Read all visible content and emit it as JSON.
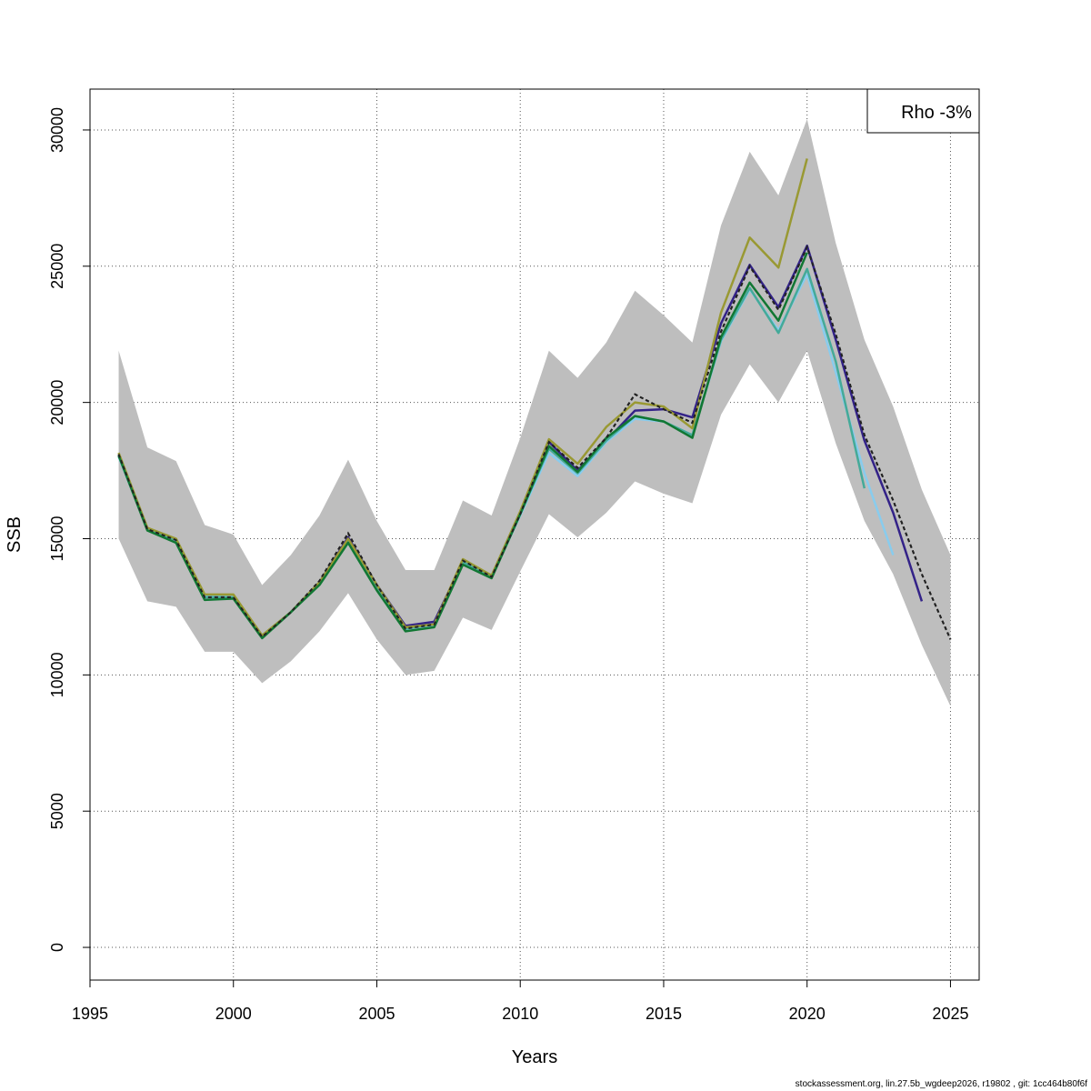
{
  "chart_data": {
    "type": "line",
    "title": "",
    "xlabel": "Years",
    "ylabel": "SSB",
    "xlim": [
      1995,
      2026
    ],
    "ylim": [
      -1200,
      31500
    ],
    "x_ticks": [
      1995,
      2000,
      2005,
      2010,
      2015,
      2020,
      2025
    ],
    "y_ticks": [
      0,
      5000,
      10000,
      15000,
      20000,
      25000,
      30000
    ],
    "grid": true,
    "legend": {
      "text": "Rho -3%",
      "position": "top-right"
    },
    "confidence_band": {
      "color": "#bebebe",
      "x": [
        1996,
        1997,
        1998,
        1999,
        2000,
        2001,
        2002,
        2003,
        2004,
        2005,
        2006,
        2007,
        2008,
        2009,
        2010,
        2011,
        2012,
        2013,
        2014,
        2015,
        2016,
        2017,
        2018,
        2019,
        2020,
        2021,
        2022,
        2023,
        2024,
        2025
      ],
      "lower": [
        15000,
        12700,
        12500,
        10850,
        10850,
        9700,
        10500,
        11600,
        13000,
        11300,
        10000,
        10150,
        12100,
        11650,
        13800,
        15900,
        15050,
        15950,
        17100,
        16650,
        16300,
        19550,
        21400,
        20000,
        21900,
        18500,
        15650,
        13700,
        11100,
        8850
      ],
      "upper": [
        21900,
        18350,
        17850,
        15500,
        15150,
        13300,
        14400,
        15850,
        17900,
        15650,
        13850,
        13850,
        16400,
        15850,
        18700,
        21900,
        20900,
        22200,
        24100,
        23200,
        22200,
        26500,
        29200,
        27600,
        30400,
        25850,
        22300,
        19850,
        16800,
        14400
      ]
    },
    "series": [
      {
        "color": "#222222",
        "dashed": true,
        "x": [
          1996,
          1997,
          1998,
          1999,
          2000,
          2001,
          2002,
          2003,
          2004,
          2005,
          2006,
          2007,
          2008,
          2009,
          2010,
          2011,
          2012,
          2013,
          2014,
          2015,
          2016,
          2017,
          2018,
          2019,
          2020,
          2021,
          2022,
          2023,
          2024,
          2025
        ],
        "values": [
          18100,
          15350,
          14950,
          12850,
          12850,
          11400,
          12300,
          13450,
          15200,
          13300,
          11700,
          11850,
          14200,
          13600,
          15900,
          18550,
          17600,
          18700,
          20300,
          19750,
          19250,
          22600,
          25000,
          23400,
          25700,
          22500,
          18800,
          16400,
          13700,
          11300
        ]
      },
      {
        "color": "#332288",
        "dashed": false,
        "x": [
          1996,
          1997,
          1998,
          1999,
          2000,
          2001,
          2002,
          2003,
          2004,
          2005,
          2006,
          2007,
          2008,
          2009,
          2010,
          2011,
          2012,
          2013,
          2014,
          2015,
          2016,
          2017,
          2018,
          2019,
          2020,
          2021,
          2022,
          2023,
          2024
        ],
        "values": [
          18050,
          15350,
          14950,
          12850,
          12850,
          11400,
          12300,
          13400,
          15050,
          13300,
          11800,
          11950,
          14150,
          13600,
          15950,
          18550,
          17500,
          18600,
          19700,
          19750,
          19450,
          22900,
          25050,
          23500,
          25750,
          22300,
          18600,
          15950,
          12700
        ]
      },
      {
        "color": "#88CCEE",
        "dashed": false,
        "x": [
          1996,
          1997,
          1998,
          1999,
          2000,
          2001,
          2002,
          2003,
          2004,
          2005,
          2006,
          2007,
          2008,
          2009,
          2010,
          2011,
          2012,
          2013,
          2014,
          2015,
          2016,
          2017,
          2018,
          2019,
          2020,
          2021,
          2022,
          2023
        ],
        "values": [
          18000,
          15350,
          14950,
          12900,
          12850,
          11450,
          12300,
          13350,
          14900,
          13200,
          11650,
          11800,
          14150,
          13600,
          15850,
          18150,
          17300,
          18550,
          19400,
          19300,
          18800,
          22250,
          24150,
          22650,
          24700,
          21100,
          17400,
          14400
        ]
      },
      {
        "color": "#44AA99",
        "dashed": false,
        "x": [
          1996,
          1997,
          1998,
          1999,
          2000,
          2001,
          2002,
          2003,
          2004,
          2005,
          2006,
          2007,
          2008,
          2009,
          2010,
          2011,
          2012,
          2013,
          2014,
          2015,
          2016,
          2017,
          2018,
          2019,
          2020,
          2021,
          2022
        ],
        "values": [
          18050,
          15350,
          14950,
          12850,
          12850,
          11400,
          12300,
          13400,
          14950,
          13250,
          11700,
          11850,
          14150,
          13600,
          15900,
          18300,
          17400,
          18600,
          19500,
          19300,
          18800,
          22300,
          24200,
          22550,
          24900,
          21500,
          16850
        ]
      },
      {
        "color": "#117733",
        "dashed": false,
        "x": [
          1996,
          1997,
          1998,
          1999,
          2000,
          2001,
          2002,
          2003,
          2004,
          2005,
          2006,
          2007,
          2008,
          2009,
          2010,
          2011,
          2012,
          2013,
          2014,
          2015,
          2016,
          2017,
          2018,
          2019,
          2020
        ],
        "values": [
          18050,
          15300,
          14850,
          12750,
          12800,
          11350,
          12300,
          13300,
          14850,
          13100,
          11600,
          11750,
          14050,
          13550,
          15900,
          18400,
          17450,
          18700,
          19500,
          19300,
          18700,
          22400,
          24400,
          23000,
          25500
        ]
      },
      {
        "color": "#999933",
        "dashed": false,
        "x": [
          1996,
          1997,
          1998,
          1999,
          2000,
          2001,
          2002,
          2003,
          2004,
          2005,
          2006,
          2007,
          2008,
          2009,
          2010,
          2011,
          2012,
          2013,
          2014,
          2015,
          2016,
          2017,
          2018,
          2019,
          2020
        ],
        "values": [
          18150,
          15400,
          15000,
          12950,
          12950,
          11450,
          12300,
          13400,
          15000,
          13300,
          11750,
          11850,
          14250,
          13650,
          16000,
          18650,
          17750,
          19100,
          20000,
          19850,
          19050,
          23300,
          26050,
          24950,
          28950
        ]
      }
    ]
  },
  "footer": "stockassessment.org, lin.27.5b_wgdeep2026, r19802 , git: 1cc464b80f6f"
}
